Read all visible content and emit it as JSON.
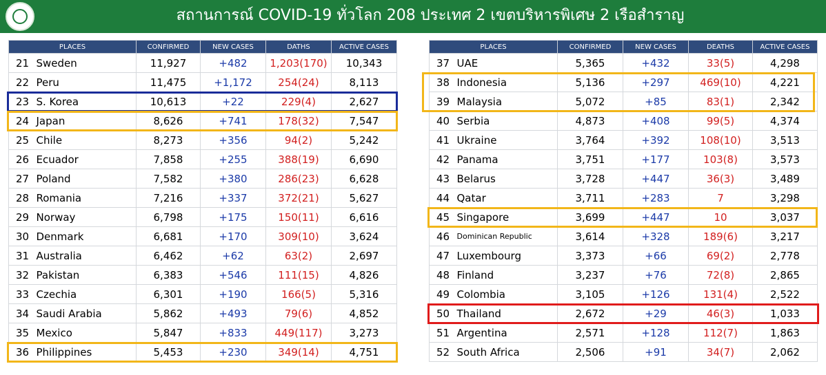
{
  "header": {
    "title": "สถานการณ์ COVID-19 ทั่วโลก 208 ประเทศ 2 เขตบริหารพิเศษ 2 เรือสำราญ"
  },
  "tables": [
    {
      "columns": [
        "PLACES",
        "CONFIRMED",
        "NEW CASES",
        "DATHS",
        "ACTIVE CASES"
      ],
      "rows": [
        [
          "21",
          "Sweden",
          "11,927",
          "+482",
          "1,203(170)",
          "10,343"
        ],
        [
          "22",
          "Peru",
          "11,475",
          "+1,172",
          "254(24)",
          "8,113"
        ],
        [
          "23",
          "S. Korea",
          "10,613",
          "+22",
          "229(4)",
          "2,627"
        ],
        [
          "24",
          "Japan",
          "8,626",
          "+741",
          "178(32)",
          "7,547"
        ],
        [
          "25",
          "Chile",
          "8,273",
          "+356",
          "94(2)",
          "5,242"
        ],
        [
          "26",
          "Ecuador",
          "7,858",
          "+255",
          "388(19)",
          "6,690"
        ],
        [
          "27",
          "Poland",
          "7,582",
          "+380",
          "286(23)",
          "6,628"
        ],
        [
          "28",
          "Romania",
          "7,216",
          "+337",
          "372(21)",
          "5,627"
        ],
        [
          "29",
          "Norway",
          "6,798",
          "+175",
          "150(11)",
          "6,616"
        ],
        [
          "30",
          "Denmark",
          "6,681",
          "+170",
          "309(10)",
          "3,624"
        ],
        [
          "31",
          "Australia",
          "6,462",
          "+62",
          "63(2)",
          "2,697"
        ],
        [
          "32",
          "Pakistan",
          "6,383",
          "+546",
          "111(15)",
          "4,826"
        ],
        [
          "33",
          "Czechia",
          "6,301",
          "+190",
          "166(5)",
          "5,316"
        ],
        [
          "34",
          "Saudi Arabia",
          "5,862",
          "+493",
          "79(6)",
          "4,852"
        ],
        [
          "35",
          "Mexico",
          "5,847",
          "+833",
          "449(117)",
          "3,273"
        ],
        [
          "36",
          "Philippines",
          "5,453",
          "+230",
          "349(14)",
          "4,751"
        ]
      ]
    },
    {
      "columns": [
        "PLACES",
        "CONFIRMED",
        "NEW CASES",
        "DEATHS",
        "ACTIVE CASES"
      ],
      "rows": [
        [
          "37",
          "UAE",
          "5,365",
          "+432",
          "33(5)",
          "4,298"
        ],
        [
          "38",
          "Indonesia",
          "5,136",
          "+297",
          "469(10)",
          "4,221"
        ],
        [
          "39",
          "Malaysia",
          "5,072",
          "+85",
          "83(1)",
          "2,342"
        ],
        [
          "40",
          "Serbia",
          "4,873",
          "+408",
          "99(5)",
          "4,374"
        ],
        [
          "41",
          "Ukraine",
          "3,764",
          "+392",
          "108(10)",
          "3,513"
        ],
        [
          "42",
          "Panama",
          "3,751",
          "+177",
          "103(8)",
          "3,573"
        ],
        [
          "43",
          "Belarus",
          "3,728",
          "+447",
          "36(3)",
          "3,489"
        ],
        [
          "44",
          "Qatar",
          "3,711",
          "+283",
          "7",
          "3,298"
        ],
        [
          "45",
          "Singapore",
          "3,699",
          "+447",
          "10",
          "3,037"
        ],
        [
          "46",
          "Dominican Republic",
          "3,614",
          "+328",
          "189(6)",
          "3,217"
        ],
        [
          "47",
          "Luxembourg",
          "3,373",
          "+66",
          "69(2)",
          "2,778"
        ],
        [
          "48",
          "Finland",
          "3,237",
          "+76",
          "72(8)",
          "2,865"
        ],
        [
          "49",
          "Colombia",
          "3,105",
          "+126",
          "131(4)",
          "2,522"
        ],
        [
          "50",
          "Thailand",
          "2,672",
          "+29",
          "46(3)",
          "1,033"
        ],
        [
          "51",
          "Argentina",
          "2,571",
          "+128",
          "112(7)",
          "1,863"
        ],
        [
          "52",
          "South Africa",
          "2,506",
          "+91",
          "34(7)",
          "2,062"
        ]
      ]
    }
  ]
}
